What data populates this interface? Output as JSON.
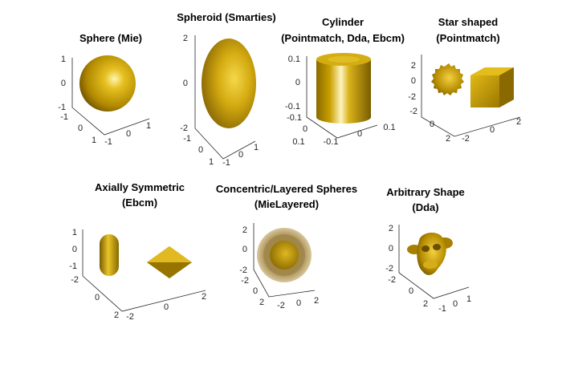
{
  "panels": [
    {
      "title_lines": [
        "Sphere (Mie)"
      ],
      "z_ticks": [
        "1",
        "0",
        "-1"
      ],
      "y_ticks": [
        "-1",
        "0",
        "1"
      ],
      "x_ticks": [
        "-1",
        "0",
        "1"
      ]
    },
    {
      "title_lines": [
        "Spheroid (Smarties)"
      ],
      "z_ticks": [
        "2",
        "0",
        "-2"
      ],
      "y_ticks": [
        "-1",
        "0",
        "1"
      ],
      "x_ticks": [
        "-1",
        "0",
        "1"
      ]
    },
    {
      "title_lines": [
        "Cylinder",
        "(Pointmatch, Dda, Ebcm)"
      ],
      "z_ticks": [
        "0.1",
        "0",
        "-0.1"
      ],
      "y_ticks": [
        "-0.1",
        "0",
        "0.1"
      ],
      "x_ticks": [
        "-0.1",
        "0",
        "0.1"
      ]
    },
    {
      "title_lines": [
        "Star shaped",
        "(Pointmatch)"
      ],
      "z_ticks": [
        "2",
        "0",
        "-2"
      ],
      "y_ticks": [
        "-2",
        "0",
        "2"
      ],
      "x_ticks": [
        "-2",
        "0",
        "2"
      ]
    },
    {
      "title_lines": [
        "Axially Symmetric",
        "(Ebcm)"
      ],
      "z_ticks": [
        "1",
        "0",
        "-1"
      ],
      "y_ticks": [
        "-2",
        "0",
        "2"
      ],
      "x_ticks": [
        "-2",
        "0",
        "2"
      ]
    },
    {
      "title_lines": [
        "Concentric/Layered Spheres",
        "(MieLayered)"
      ],
      "z_ticks": [
        "2",
        "0",
        "-2"
      ],
      "y_ticks": [
        "-2",
        "0",
        "2"
      ],
      "x_ticks": [
        "-2",
        "0",
        "2"
      ]
    },
    {
      "title_lines": [
        "Arbitrary Shape",
        "(Dda)"
      ],
      "z_ticks": [
        "2",
        "0",
        "-2"
      ],
      "y_ticks": [
        "-2",
        "0",
        "2"
      ],
      "x_ticks": [
        "-1",
        "0",
        "1"
      ]
    }
  ],
  "colors": {
    "gold": "#c9a000",
    "gold_dark": "#6b4e00",
    "gold_light": "#fff2a0",
    "shell": "#c8b27a",
    "axis": "#262626"
  }
}
